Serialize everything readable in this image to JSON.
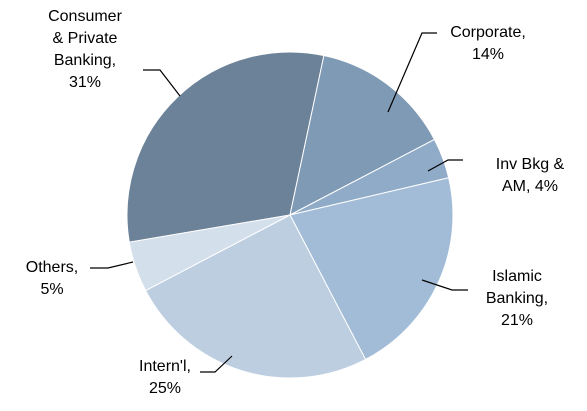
{
  "chart_data": {
    "type": "pie",
    "values": [
      31,
      14,
      4,
      21,
      25,
      5
    ],
    "value_labels": [
      [
        "Consumer",
        "& Private",
        "Banking,",
        "31%"
      ],
      [
        "Corporate,",
        "14%"
      ],
      [
        "Inv Bkg &",
        "AM, 4%"
      ],
      [
        "Islamic",
        "Banking,",
        "21%"
      ],
      [
        "Intern'l,",
        "25%"
      ],
      [
        "Others,",
        "5%"
      ]
    ],
    "colors": [
      "#6b8299",
      "#7f9ab5",
      "#8fabc8",
      "#a2bcd7",
      "#bdcee1",
      "#d4dfec"
    ]
  }
}
